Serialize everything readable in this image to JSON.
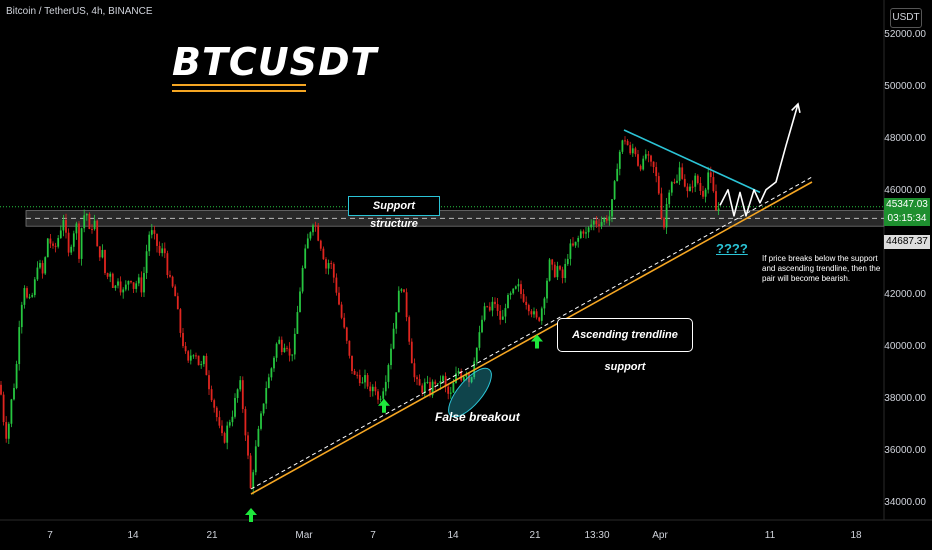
{
  "header": {
    "symbol_line": "Bitcoin / TetherUS, 4h, BINANCE"
  },
  "title": "BTCUSDT",
  "currency": "USDT",
  "price_tags": {
    "last": "45347.03",
    "countdown": "03:15:34",
    "zone": "44687.37"
  },
  "annotations": {
    "support_structure": "Support structure",
    "ascending_trendline": "Ascending trendline support",
    "false_breakout": "False breakout",
    "question": "????",
    "note": "If price breaks below the support and ascending trendline, then the pair will become bearish."
  },
  "colors": {
    "bull": "#26c640",
    "bear": "#e0251f",
    "trendline": "#f5a623",
    "resistance": "#2bc4d6",
    "background": "#000000"
  },
  "chart_data": {
    "type": "candlestick",
    "title": "BTCUSDT",
    "y_axis": {
      "ticks": [
        34000,
        36000,
        38000,
        40000,
        42000,
        44000,
        46000,
        48000,
        50000,
        52000
      ],
      "range": [
        33300,
        53300
      ]
    },
    "x_axis": {
      "ticks": [
        "7",
        "14",
        "21",
        "Mar",
        "7",
        "14",
        "21",
        "13:30",
        "Apr",
        "11",
        "18"
      ]
    },
    "support_zone": [
      44600,
      45200
    ],
    "last_price": 45347.03,
    "price_path": [
      [
        0,
        38500
      ],
      [
        4,
        37000
      ],
      [
        7,
        36400
      ],
      [
        11,
        37800
      ],
      [
        16,
        38900
      ],
      [
        19,
        40800
      ],
      [
        24,
        42400
      ],
      [
        28,
        41600
      ],
      [
        33,
        42000
      ],
      [
        38,
        43300
      ],
      [
        43,
        42700
      ],
      [
        48,
        44200
      ],
      [
        54,
        43600
      ],
      [
        60,
        44400
      ],
      [
        64,
        45000
      ],
      [
        68,
        43400
      ],
      [
        72,
        44100
      ],
      [
        76,
        44800
      ],
      [
        79,
        43500
      ],
      [
        82,
        44700
      ],
      [
        86,
        45300
      ],
      [
        90,
        44200
      ],
      [
        94,
        45000
      ],
      [
        98,
        43400
      ],
      [
        102,
        43700
      ],
      [
        106,
        42500
      ],
      [
        110,
        42900
      ],
      [
        114,
        42100
      ],
      [
        118,
        42600
      ],
      [
        122,
        42000
      ],
      [
        126,
        42300
      ],
      [
        130,
        42700
      ],
      [
        134,
        42200
      ],
      [
        138,
        42600
      ],
      [
        142,
        42100
      ],
      [
        146,
        43500
      ],
      [
        150,
        44500
      ],
      [
        155,
        44100
      ],
      [
        160,
        43500
      ],
      [
        164,
        43800
      ],
      [
        168,
        42700
      ],
      [
        172,
        42300
      ],
      [
        176,
        41800
      ],
      [
        180,
        40600
      ],
      [
        184,
        39900
      ],
      [
        188,
        39300
      ],
      [
        192,
        39800
      ],
      [
        196,
        39700
      ],
      [
        200,
        39100
      ],
      [
        204,
        39500
      ],
      [
        208,
        38600
      ],
      [
        212,
        38000
      ],
      [
        216,
        37400
      ],
      [
        220,
        36700
      ],
      [
        224,
        36300
      ],
      [
        228,
        37000
      ],
      [
        232,
        37300
      ],
      [
        236,
        38100
      ],
      [
        240,
        38600
      ],
      [
        244,
        37200
      ],
      [
        248,
        35700
      ],
      [
        251,
        34300
      ],
      [
        254,
        35600
      ],
      [
        258,
        36600
      ],
      [
        262,
        37500
      ],
      [
        266,
        38400
      ],
      [
        270,
        38900
      ],
      [
        274,
        39600
      ],
      [
        278,
        40300
      ],
      [
        282,
        39900
      ],
      [
        286,
        40200
      ],
      [
        290,
        39500
      ],
      [
        294,
        40000
      ],
      [
        298,
        41500
      ],
      [
        302,
        42800
      ],
      [
        306,
        43800
      ],
      [
        310,
        44400
      ],
      [
        314,
        44900
      ],
      [
        318,
        44200
      ],
      [
        322,
        43700
      ],
      [
        326,
        43000
      ],
      [
        330,
        43300
      ],
      [
        334,
        42600
      ],
      [
        338,
        41800
      ],
      [
        342,
        41000
      ],
      [
        346,
        40300
      ],
      [
        350,
        39400
      ],
      [
        354,
        38800
      ],
      [
        358,
        38900
      ],
      [
        362,
        38500
      ],
      [
        366,
        38800
      ],
      [
        370,
        38100
      ],
      [
        374,
        38600
      ],
      [
        378,
        37900
      ],
      [
        382,
        38200
      ],
      [
        386,
        38800
      ],
      [
        390,
        39700
      ],
      [
        394,
        40800
      ],
      [
        398,
        41900
      ],
      [
        402,
        42400
      ],
      [
        406,
        41400
      ],
      [
        410,
        40000
      ],
      [
        414,
        38800
      ],
      [
        418,
        38500
      ],
      [
        422,
        38300
      ],
      [
        426,
        38600
      ],
      [
        430,
        38200
      ],
      [
        434,
        38700
      ],
      [
        438,
        38400
      ],
      [
        442,
        38900
      ],
      [
        446,
        38300
      ],
      [
        450,
        38000
      ],
      [
        454,
        38600
      ],
      [
        458,
        39100
      ],
      [
        462,
        38700
      ],
      [
        466,
        39100
      ],
      [
        470,
        38500
      ],
      [
        474,
        39500
      ],
      [
        478,
        40100
      ],
      [
        482,
        41000
      ],
      [
        486,
        41600
      ],
      [
        490,
        41300
      ],
      [
        494,
        41800
      ],
      [
        498,
        41200
      ],
      [
        502,
        40900
      ],
      [
        506,
        41700
      ],
      [
        510,
        41900
      ],
      [
        514,
        42100
      ],
      [
        518,
        42300
      ],
      [
        522,
        41900
      ],
      [
        526,
        41700
      ],
      [
        530,
        41400
      ],
      [
        534,
        41200
      ],
      [
        538,
        40900
      ],
      [
        542,
        41500
      ],
      [
        546,
        42300
      ],
      [
        550,
        43300
      ],
      [
        554,
        42700
      ],
      [
        558,
        43100
      ],
      [
        562,
        42500
      ],
      [
        566,
        43200
      ],
      [
        570,
        43800
      ],
      [
        574,
        43800
      ],
      [
        578,
        44100
      ],
      [
        582,
        44500
      ],
      [
        586,
        44300
      ],
      [
        590,
        44600
      ],
      [
        594,
        44800
      ],
      [
        598,
        44700
      ],
      [
        602,
        44800
      ],
      [
        606,
        44900
      ],
      [
        610,
        45000
      ],
      [
        614,
        46000
      ],
      [
        618,
        47200
      ],
      [
        622,
        47800
      ],
      [
        626,
        48000
      ],
      [
        630,
        47300
      ],
      [
        634,
        47700
      ],
      [
        638,
        47000
      ],
      [
        642,
        46900
      ],
      [
        646,
        47400
      ],
      [
        650,
        47000
      ],
      [
        654,
        46800
      ],
      [
        658,
        46200
      ],
      [
        661,
        45100
      ],
      [
        664,
        44600
      ],
      [
        668,
        45900
      ],
      [
        672,
        46400
      ],
      [
        676,
        46100
      ],
      [
        680,
        46900
      ],
      [
        684,
        46300
      ],
      [
        688,
        45800
      ],
      [
        692,
        46200
      ],
      [
        696,
        46500
      ],
      [
        700,
        46000
      ],
      [
        704,
        45800
      ],
      [
        708,
        46700
      ],
      [
        712,
        46200
      ],
      [
        716,
        45200
      ],
      [
        720,
        45347
      ]
    ],
    "trendline": [
      [
        251,
        34300
      ],
      [
        812,
        46300
      ]
    ],
    "resistance_line": [
      [
        624,
        48300
      ],
      [
        760,
        45900
      ]
    ],
    "projection": [
      [
        720,
        45400
      ],
      [
        728,
        46000
      ],
      [
        734,
        45000
      ],
      [
        740,
        45900
      ],
      [
        746,
        45000
      ],
      [
        754,
        46000
      ],
      [
        760,
        45500
      ],
      [
        766,
        46000
      ],
      [
        776,
        46300
      ],
      [
        786,
        47700
      ],
      [
        798,
        49300
      ]
    ],
    "markers": {
      "arrows_up": [
        251,
        384,
        537
      ],
      "ellipse_center": [
        470,
        38200
      ]
    }
  }
}
